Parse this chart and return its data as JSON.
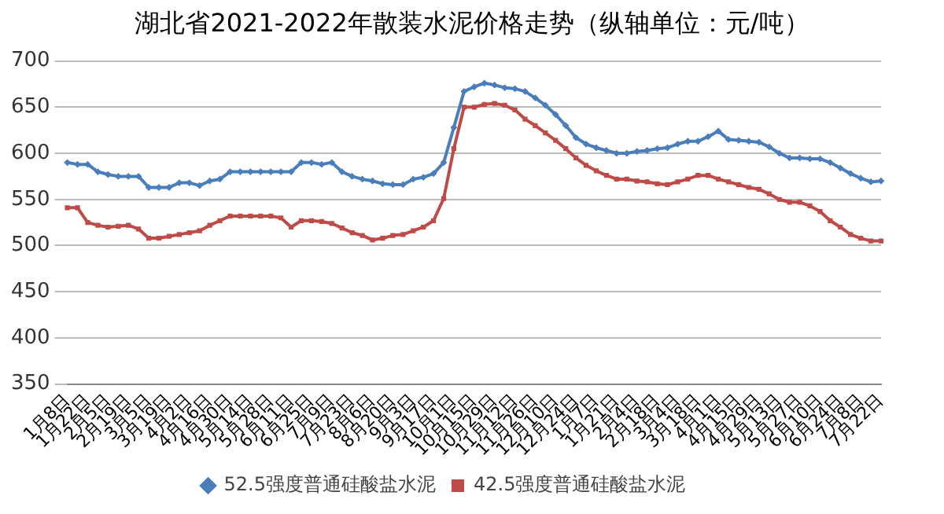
{
  "chart_data": {
    "type": "line",
    "title": "湖北省2021-2022年散装水泥价格走势（纵轴单位：元/吨）",
    "categories": [
      "1月8日",
      null,
      "1月22日",
      null,
      "2月5日",
      null,
      "2月19日",
      null,
      "3月5日",
      null,
      "3月19日",
      null,
      "4月2日",
      null,
      "4月16日",
      null,
      "4月30日",
      null,
      "5月14日",
      null,
      "5月28日",
      null,
      "6月11日",
      null,
      "6月25日",
      null,
      "7月9日",
      null,
      "7月23日",
      null,
      "8月6日",
      null,
      "8月20日",
      null,
      "9月3日",
      null,
      "9月17日",
      null,
      "10月1日",
      null,
      "10月15日",
      null,
      "10月29日",
      null,
      "11月12日",
      null,
      "11月26日",
      null,
      "12月10日",
      null,
      "12月24日",
      null,
      "1月7日",
      null,
      "1月21日",
      null,
      "2月4日",
      null,
      "2月18日",
      null,
      "3月4日",
      null,
      "3月18日",
      null,
      "4月1日",
      null,
      "4月15日",
      null,
      "4月29日",
      null,
      "5月13日",
      null,
      "5月27日",
      null,
      "6月10日",
      null,
      "6月24日",
      null,
      "7月8日",
      null,
      "7月22日"
    ],
    "series": [
      {
        "name": "52.5强度普通硅酸盐水泥",
        "color": "#4a7ebb",
        "marker": "diamond",
        "values": [
          590,
          588,
          588,
          580,
          577,
          575,
          575,
          575,
          563,
          563,
          563,
          568,
          568,
          565,
          570,
          572,
          580,
          580,
          580,
          580,
          580,
          580,
          580,
          590,
          590,
          588,
          590,
          580,
          575,
          572,
          570,
          567,
          566,
          566,
          572,
          574,
          578,
          590,
          628,
          667,
          672,
          676,
          674,
          671,
          670,
          667,
          660,
          652,
          642,
          630,
          617,
          610,
          606,
          603,
          600,
          600,
          602,
          603,
          605,
          606,
          610,
          613,
          613,
          618,
          624,
          615,
          614,
          613,
          612,
          607,
          600,
          595,
          595,
          594,
          594,
          590,
          584,
          578,
          573,
          569,
          570
        ]
      },
      {
        "name": "42.5强度普通硅酸盐水泥",
        "color": "#be4b48",
        "marker": "square",
        "values": [
          541,
          541,
          525,
          522,
          520,
          521,
          522,
          518,
          508,
          508,
          510,
          512,
          514,
          516,
          522,
          527,
          532,
          532,
          532,
          532,
          532,
          530,
          520,
          527,
          527,
          526,
          524,
          519,
          514,
          511,
          506,
          508,
          511,
          512,
          516,
          520,
          527,
          551,
          605,
          650,
          650,
          653,
          654,
          652,
          647,
          637,
          630,
          622,
          614,
          605,
          595,
          587,
          581,
          576,
          572,
          572,
          570,
          569,
          567,
          566,
          569,
          572,
          576,
          576,
          572,
          569,
          566,
          563,
          561,
          556,
          550,
          547,
          547,
          543,
          537,
          527,
          520,
          512,
          508,
          505,
          505
        ]
      }
    ],
    "ylim": [
      350,
      700
    ],
    "yticks": [
      350,
      400,
      450,
      500,
      550,
      600,
      650,
      700
    ],
    "grid": "y",
    "legend": "bottom"
  }
}
